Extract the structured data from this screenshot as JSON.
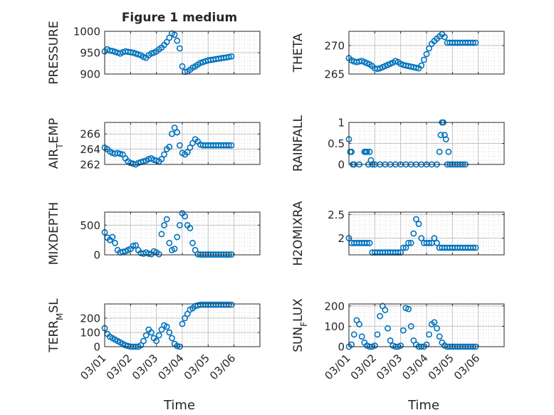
{
  "figure": {
    "title": "Figure 1 medium",
    "x_tick_labels": [
      "03/01",
      "03/02",
      "03/03",
      "03/04",
      "03/05",
      "03/06"
    ],
    "x_label": "Time",
    "marker_color": "#0072BD"
  },
  "chart_data": [
    {
      "type": "scatter",
      "marker": "circle-open",
      "title": "Figure 1 medium",
      "ylabel": "PRESSURE",
      "xlabel": "",
      "xlim": [
        0,
        6
      ],
      "ylim": [
        900,
        1000
      ],
      "yticks": [
        900,
        950,
        1000
      ],
      "grid": true,
      "x": [
        0,
        0.1,
        0.2,
        0.3,
        0.4,
        0.5,
        0.6,
        0.7,
        0.8,
        0.9,
        1,
        1.1,
        1.2,
        1.3,
        1.4,
        1.5,
        1.6,
        1.7,
        1.8,
        1.9,
        2,
        2.1,
        2.2,
        2.3,
        2.4,
        2.5,
        2.6,
        2.7,
        2.8,
        2.9,
        3,
        3.1,
        3.2,
        3.3,
        3.4,
        3.5,
        3.6,
        3.7,
        3.8,
        3.9,
        4,
        4.1,
        4.2,
        4.3,
        4.4,
        4.5,
        4.6,
        4.7,
        4.8,
        4.9
      ],
      "y": [
        953,
        958,
        955,
        954,
        952,
        950,
        948,
        951,
        953,
        952,
        951,
        950,
        948,
        946,
        944,
        940,
        938,
        944,
        948,
        950,
        953,
        958,
        962,
        968,
        975,
        985,
        995,
        992,
        978,
        960,
        918,
        905,
        906,
        910,
        915,
        918,
        922,
        926,
        928,
        930,
        932,
        933,
        934,
        935,
        936,
        937,
        938,
        939,
        940,
        941
      ]
    },
    {
      "type": "scatter",
      "marker": "circle-open",
      "title": "",
      "ylabel": "THETA",
      "xlabel": "",
      "xlim": [
        0,
        6
      ],
      "ylim": [
        265,
        272.5
      ],
      "yticks": [
        265,
        270
      ],
      "grid": true,
      "x": [
        0,
        0.1,
        0.2,
        0.3,
        0.4,
        0.5,
        0.6,
        0.7,
        0.8,
        0.9,
        1,
        1.1,
        1.2,
        1.3,
        1.4,
        1.5,
        1.6,
        1.7,
        1.8,
        1.9,
        2,
        2.1,
        2.2,
        2.3,
        2.4,
        2.5,
        2.6,
        2.7,
        2.8,
        2.9,
        3,
        3.1,
        3.2,
        3.3,
        3.4,
        3.5,
        3.6,
        3.7,
        3.8,
        3.9,
        4,
        4.1,
        4.2,
        4.3,
        4.4,
        4.5,
        4.6,
        4.7,
        4.8,
        4.9
      ],
      "y": [
        267.8,
        267.4,
        267.2,
        267.1,
        267.2,
        267.3,
        267.1,
        266.9,
        266.7,
        266.4,
        266.0,
        265.9,
        266.0,
        266.2,
        266.4,
        266.6,
        266.8,
        267.0,
        267.3,
        267.1,
        266.8,
        266.6,
        266.5,
        266.4,
        266.3,
        266.2,
        266.1,
        266.0,
        266.5,
        267.5,
        268.5,
        269.5,
        270.3,
        270.8,
        271.2,
        271.6,
        272.0,
        271.5,
        270.5,
        270.5,
        270.5,
        270.5,
        270.5,
        270.5,
        270.5,
        270.5,
        270.5,
        270.5,
        270.5,
        270.5
      ]
    },
    {
      "type": "scatter",
      "marker": "circle-open",
      "title": "",
      "ylabel": "AIR_TEMP",
      "xlabel": "",
      "xlim": [
        0,
        6
      ],
      "ylim": [
        262,
        267.5
      ],
      "yticks": [
        262,
        264,
        266
      ],
      "grid": true,
      "x": [
        0,
        0.1,
        0.2,
        0.3,
        0.4,
        0.5,
        0.6,
        0.7,
        0.8,
        0.9,
        1,
        1.1,
        1.2,
        1.3,
        1.4,
        1.5,
        1.6,
        1.7,
        1.8,
        1.9,
        2,
        2.1,
        2.2,
        2.3,
        2.4,
        2.5,
        2.6,
        2.7,
        2.8,
        2.9,
        3,
        3.1,
        3.2,
        3.3,
        3.4,
        3.5,
        3.6,
        3.7,
        3.8,
        3.9,
        4,
        4.1,
        4.2,
        4.3,
        4.4,
        4.5,
        4.6,
        4.7,
        4.8,
        4.9
      ],
      "y": [
        264.2,
        264.0,
        263.7,
        263.5,
        263.4,
        263.5,
        263.4,
        263.3,
        262.8,
        262.4,
        262.2,
        262.1,
        262.0,
        262.2,
        262.3,
        262.4,
        262.5,
        262.7,
        262.8,
        262.6,
        262.5,
        262.4,
        262.7,
        263.3,
        264.0,
        264.3,
        266.0,
        266.8,
        266.2,
        264.5,
        263.5,
        263.3,
        263.6,
        264.2,
        264.8,
        265.3,
        265.0,
        264.6,
        264.5,
        264.5,
        264.5,
        264.5,
        264.5,
        264.5,
        264.5,
        264.5,
        264.5,
        264.5,
        264.5,
        264.5
      ]
    },
    {
      "type": "scatter",
      "marker": "circle-open",
      "title": "",
      "ylabel": "RAINFALL",
      "xlabel": "",
      "xlim": [
        0,
        6
      ],
      "ylim": [
        0,
        1
      ],
      "yticks": [
        0,
        0.5,
        1
      ],
      "grid": true,
      "x": [
        0,
        0.05,
        0.1,
        0.15,
        0.2,
        0.4,
        0.6,
        0.65,
        0.7,
        0.75,
        0.8,
        0.85,
        0.9,
        1,
        1.2,
        1.4,
        1.6,
        1.8,
        2,
        2.2,
        2.4,
        2.6,
        2.8,
        3,
        3.2,
        3.4,
        3.5,
        3.55,
        3.6,
        3.65,
        3.7,
        3.75,
        3.8,
        3.85,
        3.9,
        4,
        4.1,
        4.2,
        4.3,
        4.4,
        4.5
      ],
      "y": [
        0.6,
        0.3,
        0.3,
        0,
        0,
        0,
        0.3,
        0.3,
        0.3,
        0,
        0.3,
        0.1,
        0,
        0,
        0,
        0,
        0,
        0,
        0,
        0,
        0,
        0,
        0,
        0,
        0,
        0,
        0.3,
        0.7,
        1,
        1,
        0.7,
        0.6,
        0,
        0.3,
        0,
        0,
        0,
        0,
        0,
        0,
        0
      ]
    },
    {
      "type": "scatter",
      "marker": "circle-open",
      "title": "",
      "ylabel": "MIXDEPTH",
      "xlabel": "",
      "xlim": [
        0,
        6
      ],
      "ylim": [
        0,
        720
      ],
      "yticks": [
        0,
        500
      ],
      "grid": true,
      "x": [
        0,
        0.1,
        0.2,
        0.3,
        0.4,
        0.5,
        0.6,
        0.7,
        0.8,
        0.9,
        1,
        1.1,
        1.2,
        1.3,
        1.4,
        1.5,
        1.6,
        1.7,
        1.8,
        1.9,
        2,
        2.1,
        2.2,
        2.3,
        2.4,
        2.5,
        2.6,
        2.7,
        2.8,
        2.9,
        3,
        3.1,
        3.2,
        3.3,
        3.4,
        3.5,
        3.6,
        3.7,
        3.8,
        3.9,
        4,
        4.1,
        4.2,
        4.3,
        4.4,
        4.5,
        4.6,
        4.7,
        4.8,
        4.9
      ],
      "y": [
        380,
        290,
        250,
        300,
        200,
        80,
        40,
        50,
        60,
        80,
        100,
        150,
        160,
        80,
        30,
        20,
        40,
        20,
        10,
        60,
        40,
        10,
        350,
        500,
        600,
        200,
        80,
        100,
        300,
        500,
        700,
        650,
        500,
        450,
        200,
        80,
        10,
        5,
        5,
        5,
        5,
        5,
        5,
        5,
        5,
        5,
        5,
        5,
        5,
        5
      ]
    },
    {
      "type": "scatter",
      "marker": "circle-open",
      "title": "",
      "ylabel": "H2OMIXRA",
      "xlabel": "",
      "xlim": [
        0,
        6
      ],
      "ylim": [
        1.65,
        2.55
      ],
      "yticks": [
        2,
        2.5
      ],
      "grid": true,
      "x": [
        0,
        0.1,
        0.2,
        0.3,
        0.4,
        0.5,
        0.6,
        0.7,
        0.8,
        0.9,
        1,
        1.1,
        1.2,
        1.3,
        1.4,
        1.5,
        1.6,
        1.7,
        1.8,
        1.9,
        2,
        2.1,
        2.2,
        2.3,
        2.4,
        2.5,
        2.6,
        2.7,
        2.8,
        2.9,
        3,
        3.1,
        3.2,
        3.3,
        3.4,
        3.5,
        3.6,
        3.7,
        3.8,
        3.9,
        4,
        4.1,
        4.2,
        4.3,
        4.4,
        4.5,
        4.6,
        4.7,
        4.8,
        4.9
      ],
      "y": [
        2.0,
        1.9,
        1.9,
        1.9,
        1.9,
        1.9,
        1.9,
        1.9,
        1.9,
        1.7,
        1.7,
        1.7,
        1.7,
        1.7,
        1.7,
        1.7,
        1.7,
        1.7,
        1.7,
        1.7,
        1.7,
        1.8,
        1.8,
        1.9,
        1.9,
        2.1,
        2.4,
        2.3,
        2.0,
        1.9,
        1.9,
        1.9,
        1.9,
        2.0,
        1.9,
        1.8,
        1.8,
        1.8,
        1.8,
        1.8,
        1.8,
        1.8,
        1.8,
        1.8,
        1.8,
        1.8,
        1.8,
        1.8,
        1.8,
        1.8
      ]
    },
    {
      "type": "scatter",
      "marker": "circle-open",
      "title": "",
      "ylabel": "TERR_MSL",
      "xlabel": "",
      "xlim": [
        0,
        6
      ],
      "ylim": [
        0,
        300
      ],
      "yticks": [
        0,
        100,
        200
      ],
      "grid": true,
      "x": [
        0,
        0.1,
        0.2,
        0.3,
        0.4,
        0.5,
        0.6,
        0.7,
        0.8,
        0.9,
        1,
        1.1,
        1.2,
        1.3,
        1.4,
        1.5,
        1.6,
        1.7,
        1.8,
        1.9,
        2,
        2.1,
        2.2,
        2.3,
        2.4,
        2.5,
        2.6,
        2.7,
        2.8,
        2.9,
        3,
        3.1,
        3.2,
        3.3,
        3.4,
        3.5,
        3.6,
        3.7,
        3.8,
        3.9,
        4,
        4.1,
        4.2,
        4.3,
        4.4,
        4.5,
        4.6,
        4.7,
        4.8,
        4.9
      ],
      "y": [
        130,
        90,
        70,
        60,
        50,
        40,
        30,
        20,
        10,
        5,
        0,
        0,
        0,
        0,
        10,
        40,
        80,
        120,
        100,
        60,
        40,
        80,
        120,
        150,
        140,
        100,
        60,
        20,
        5,
        0,
        160,
        200,
        230,
        260,
        270,
        285,
        290,
        295,
        295,
        295,
        295,
        295,
        295,
        295,
        295,
        295,
        295,
        295,
        295,
        295
      ]
    },
    {
      "type": "scatter",
      "marker": "circle-open",
      "title": "",
      "ylabel": "SUN_FLUX",
      "xlabel": "",
      "xlim": [
        0,
        6
      ],
      "ylim": [
        0,
        210
      ],
      "yticks": [
        0,
        100,
        200
      ],
      "grid": true,
      "x": [
        0,
        0.1,
        0.2,
        0.3,
        0.4,
        0.5,
        0.6,
        0.7,
        0.8,
        0.9,
        1,
        1.1,
        1.2,
        1.3,
        1.4,
        1.5,
        1.6,
        1.7,
        1.8,
        1.9,
        2,
        2.1,
        2.2,
        2.3,
        2.4,
        2.5,
        2.6,
        2.7,
        2.8,
        2.9,
        3,
        3.1,
        3.2,
        3.3,
        3.4,
        3.5,
        3.6,
        3.7,
        3.8,
        3.9,
        4,
        4.1,
        4.2,
        4.3,
        4.4,
        4.5,
        4.6,
        4.7,
        4.8,
        4.9
      ],
      "y": [
        0,
        10,
        60,
        130,
        110,
        50,
        20,
        5,
        0,
        0,
        5,
        60,
        150,
        200,
        180,
        90,
        30,
        5,
        0,
        0,
        5,
        80,
        190,
        185,
        100,
        30,
        10,
        0,
        0,
        0,
        10,
        60,
        110,
        120,
        90,
        50,
        20,
        5,
        0,
        0,
        0,
        0,
        0,
        0,
        0,
        0,
        0,
        0,
        0,
        0
      ]
    }
  ]
}
